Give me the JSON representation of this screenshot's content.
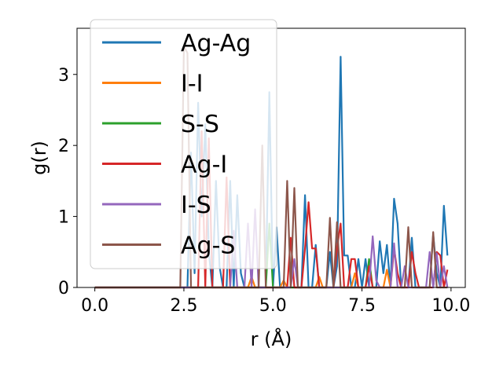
{
  "chart_data": {
    "type": "line",
    "xlabel": "r (Å)",
    "ylabel": "g(r)",
    "xlim": [
      -0.5,
      10.4
    ],
    "ylim": [
      0,
      3.65
    ],
    "xticks": [
      0.0,
      2.5,
      5.0,
      7.5,
      10.0
    ],
    "xtick_labels": [
      "0.0",
      "2.5",
      "5.0",
      "7.5",
      "10.0"
    ],
    "yticks": [
      0,
      1,
      2,
      3
    ],
    "ytick_labels": [
      "0",
      "1",
      "2",
      "3"
    ],
    "grid": false,
    "legend_position": "top-left",
    "series": [
      {
        "name": "Ag-Ag",
        "color": "#1f77b4",
        "x": [
          0,
          2.6,
          2.7,
          2.8,
          2.9,
          3.0,
          3.1,
          3.2,
          3.3,
          3.4,
          3.5,
          3.6,
          3.7,
          3.8,
          3.9,
          4.0,
          4.1,
          4.2,
          4.3,
          4.4,
          4.5,
          4.6,
          4.7,
          4.8,
          4.9,
          5.0,
          5.1,
          5.2,
          5.3,
          5.4,
          5.5,
          5.6,
          5.7,
          5.8,
          5.9,
          6.0,
          6.1,
          6.2,
          6.3,
          6.4,
          6.5,
          6.6,
          6.7,
          6.8,
          6.9,
          7.0,
          7.1,
          7.2,
          7.3,
          7.4,
          7.5,
          7.6,
          7.7,
          7.8,
          7.9,
          8.0,
          8.1,
          8.2,
          8.3,
          8.4,
          8.5,
          8.6,
          8.7,
          8.8,
          8.9,
          9.0,
          9.1,
          9.2,
          9.3,
          9.4,
          9.5,
          9.6,
          9.7,
          9.8,
          9.9
        ],
        "y": [
          0,
          0,
          1.9,
          0.2,
          2.6,
          1.0,
          2.3,
          0.5,
          0.0,
          1.5,
          0.3,
          0.0,
          0.0,
          1.5,
          0.0,
          1.3,
          0.2,
          0.0,
          0.0,
          0.0,
          0.0,
          0.0,
          0.0,
          0.0,
          2.75,
          0.0,
          0.85,
          0.0,
          0.0,
          0.0,
          0.0,
          0.0,
          0.0,
          0.0,
          1.3,
          0.0,
          0.0,
          0.6,
          0.0,
          0.0,
          0.0,
          0.5,
          0.0,
          0.3,
          3.25,
          0.45,
          0.45,
          0.0,
          0.0,
          0.4,
          0.0,
          0.4,
          0.0,
          0.0,
          0.0,
          0.65,
          0.2,
          0.6,
          0.0,
          1.25,
          0.9,
          0.0,
          0.0,
          0.0,
          0.7,
          0.0,
          0.0,
          0.0,
          0.0,
          0.0,
          0.75,
          0.2,
          0.0,
          1.15,
          0.45
        ]
      },
      {
        "name": "I-I",
        "color": "#ff7f0e",
        "x": [
          0,
          4.3,
          4.4,
          4.5,
          5.2,
          5.3,
          5.4,
          6.2,
          6.3,
          6.4,
          7.2,
          7.3,
          7.4,
          8.1,
          8.2,
          8.3
        ],
        "y": [
          0,
          0,
          0.15,
          0,
          0,
          0.1,
          0,
          0,
          0.15,
          0,
          0,
          0.2,
          0,
          0,
          0.25,
          0
        ]
      },
      {
        "name": "S-S",
        "color": "#2ca02c",
        "x": [
          0,
          4.8,
          4.9,
          5.0,
          5.1,
          7.6,
          7.7,
          7.8
        ],
        "y": [
          0,
          0,
          0.9,
          0.0,
          0.0,
          0,
          0.4,
          0
        ]
      },
      {
        "name": "Ag-I",
        "color": "#d62728",
        "x": [
          0,
          2.8,
          2.9,
          3.0,
          3.1,
          3.2,
          3.3,
          3.4,
          3.5,
          3.6,
          3.7,
          3.8,
          3.9,
          4.0,
          4.1,
          4.2,
          4.3,
          4.4,
          4.5,
          4.6,
          4.7,
          4.8,
          4.9,
          5.0,
          5.1,
          5.2,
          5.3,
          5.4,
          5.5,
          5.6,
          5.7,
          5.8,
          5.9,
          6.0,
          6.1,
          6.2,
          6.3,
          6.4,
          6.5,
          6.6,
          6.7,
          6.8,
          6.9,
          7.0,
          7.1,
          7.2,
          7.3,
          7.4,
          7.5,
          7.6,
          7.7,
          7.8,
          7.9,
          8.0,
          8.1,
          8.2,
          8.3,
          8.4,
          8.5,
          8.6,
          8.7,
          8.8,
          8.9,
          9.0,
          9.1,
          9.2,
          9.3,
          9.4,
          9.5,
          9.6,
          9.7,
          9.8,
          9.9
        ],
        "y": [
          0,
          0,
          0.0,
          2.2,
          0.0,
          2.1,
          0.0,
          0.0,
          0.0,
          0.0,
          1.55,
          0.0,
          0.0,
          0.0,
          0.0,
          0.0,
          0.0,
          0.0,
          0.0,
          0.0,
          0.0,
          0.0,
          0.0,
          0.0,
          0.0,
          0.0,
          0.0,
          0.0,
          0.7,
          0.0,
          0.0,
          0.0,
          0.55,
          1.2,
          0.55,
          0.55,
          0.0,
          0.0,
          0.0,
          0.0,
          0.0,
          0.55,
          0.9,
          0.0,
          0.0,
          0.4,
          0.4,
          0.0,
          0.0,
          0.0,
          0.3,
          0.0,
          0.0,
          0.0,
          0.0,
          0.0,
          0.0,
          0.55,
          0.2,
          0.0,
          0.0,
          0.0,
          0.5,
          0.2,
          0.0,
          0.0,
          0.0,
          0.0,
          0.0,
          0.5,
          0.45,
          0.0,
          0.25
        ]
      },
      {
        "name": "I-S",
        "color": "#9467bd",
        "x": [
          0,
          3.8,
          3.9,
          4.0,
          4.1,
          4.2,
          4.3,
          4.4,
          4.5,
          4.6,
          4.7,
          4.8,
          4.9,
          5.0,
          5.1,
          5.2,
          5.3,
          5.4,
          5.5,
          5.6,
          5.7,
          5.8,
          5.9,
          6.0,
          6.1,
          6.2,
          6.3,
          6.4,
          6.5,
          6.6,
          6.7,
          6.8,
          6.9,
          7.0,
          7.1,
          7.2,
          7.3,
          7.4,
          7.5,
          7.6,
          7.7,
          7.8,
          7.9,
          8.0,
          8.1,
          8.2,
          8.3,
          8.4,
          8.5,
          8.6,
          8.7,
          8.8,
          8.9,
          9.0,
          9.1,
          9.2,
          9.3,
          9.4,
          9.5,
          9.6,
          9.7,
          9.8,
          9.9
        ],
        "y": [
          0,
          0,
          0.8,
          0.0,
          0.0,
          0.0,
          0.9,
          0.0,
          1.1,
          0.0,
          0.0,
          0.0,
          0.0,
          0.0,
          0.0,
          0.0,
          0.0,
          0.0,
          0.0,
          0.4,
          0.0,
          0.0,
          0.0,
          0.0,
          0.0,
          0.0,
          0.0,
          0.0,
          0.0,
          0.0,
          0.0,
          0.0,
          0.0,
          0.0,
          0.0,
          0.0,
          0.0,
          0.0,
          0.0,
          0.0,
          0.0,
          0.72,
          0.1,
          0.0,
          0.0,
          0.0,
          0.0,
          0.62,
          0.0,
          0.0,
          0.3,
          0.0,
          0.0,
          0.0,
          0.0,
          0.0,
          0.0,
          0.5,
          0.0,
          0.48,
          0.0,
          0.3,
          0.0
        ]
      },
      {
        "name": "Ag-S",
        "color": "#8c564b",
        "x": [
          0,
          2.4,
          2.5,
          2.6,
          2.7,
          2.8,
          2.9,
          3.0,
          3.1,
          3.2,
          3.3,
          3.4,
          3.5,
          3.6,
          3.7,
          3.8,
          3.9,
          4.0,
          4.1,
          4.2,
          4.3,
          4.4,
          4.5,
          4.6,
          4.7,
          4.8,
          4.9,
          5.0,
          5.1,
          5.2,
          5.3,
          5.4,
          5.5,
          5.6,
          5.7,
          5.8,
          5.9,
          6.0,
          6.1,
          6.2,
          6.3,
          6.4,
          6.5,
          6.6,
          6.7,
          6.8,
          6.9,
          7.0,
          7.1,
          7.2,
          7.3,
          7.4,
          7.5,
          7.6,
          7.7,
          7.8,
          7.9,
          8.0,
          8.1,
          8.2,
          8.3,
          8.4,
          8.5,
          8.6,
          8.7,
          8.8,
          8.9,
          9.0,
          9.1,
          9.2,
          9.3,
          9.4,
          9.5,
          9.6,
          9.7,
          9.8,
          9.9
        ],
        "y": [
          0,
          0,
          3.4,
          3.3,
          0.0,
          0.0,
          0.0,
          0.0,
          0.0,
          0.0,
          0.0,
          0.0,
          0.0,
          0.0,
          0.0,
          0.0,
          0.0,
          0.0,
          0.0,
          0.0,
          0.0,
          0.0,
          0.0,
          0.0,
          2.0,
          0.0,
          0.0,
          0.0,
          0.0,
          0.0,
          0.0,
          1.5,
          0.0,
          1.4,
          0.0,
          0.0,
          0.0,
          0.0,
          0.0,
          0.0,
          0.0,
          0.0,
          0.0,
          0.98,
          0.0,
          0.92,
          0.0,
          0.0,
          0.0,
          0.0,
          0.0,
          0.0,
          0.0,
          0.0,
          0.0,
          0.0,
          0.0,
          0.0,
          0.0,
          0.0,
          0.0,
          0.0,
          0.0,
          0.0,
          0.0,
          0.85,
          0.0,
          0.0,
          0.0,
          0.0,
          0.0,
          0.0,
          0.78,
          0.0,
          0.0,
          0.0,
          0.0
        ]
      }
    ]
  }
}
